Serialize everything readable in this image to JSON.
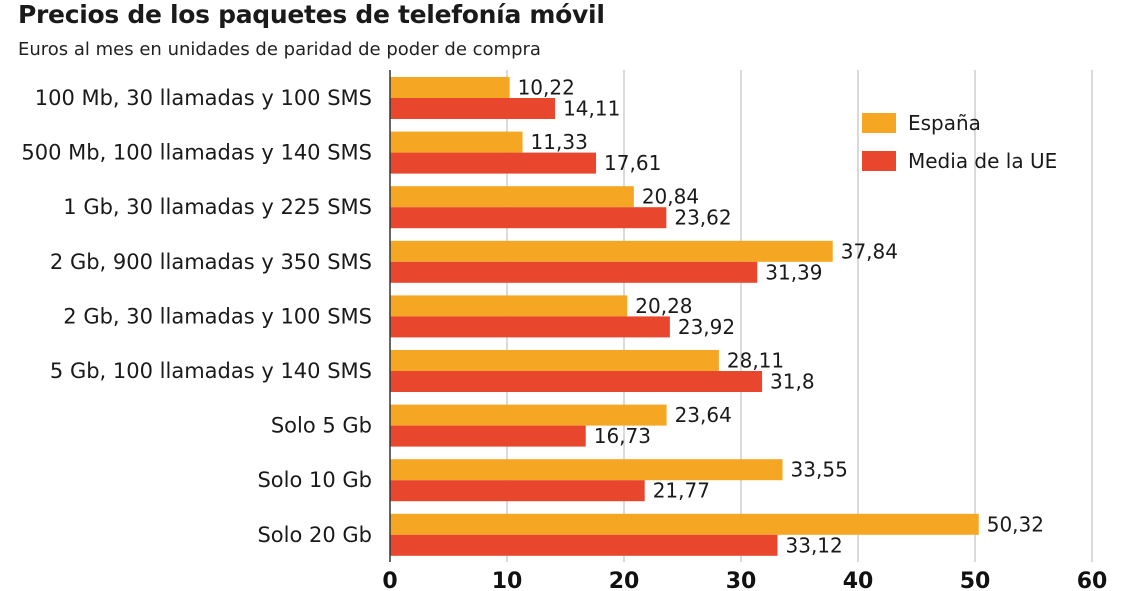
{
  "chart_data": {
    "type": "bar",
    "orientation": "horizontal",
    "title": "Precios de los paquetes de telefonía móvil",
    "subtitle": "Euros al mes en unidades de paridad de poder de compra",
    "categories": [
      "100 Mb, 30 llamadas y 100 SMS",
      "500 Mb, 100 llamadas y 140 SMS",
      "1 Gb, 30 llamadas y 225 SMS",
      "2 Gb, 900 llamadas y 350 SMS",
      "2 Gb, 30 llamadas y 100 SMS",
      "5 Gb, 100 llamadas y 140 SMS",
      "Solo 5 Gb",
      "Solo 10 Gb",
      "Solo 20 Gb"
    ],
    "series": [
      {
        "name": "España",
        "color": "#F5A623",
        "values": [
          10.22,
          11.33,
          20.84,
          37.84,
          20.28,
          28.11,
          23.64,
          33.55,
          50.32
        ],
        "labels": [
          "10,22",
          "11,33",
          "20,84",
          "37,84",
          "20,28",
          "28,11",
          "23,64",
          "33,55",
          "50,32"
        ]
      },
      {
        "name": "Media de la UE",
        "color": "#E8472E",
        "values": [
          14.11,
          17.61,
          23.62,
          31.39,
          23.92,
          31.8,
          16.73,
          21.77,
          33.12
        ],
        "labels": [
          "14,11",
          "17,61",
          "23,62",
          "31,39",
          "23,92",
          "31,8",
          "16,73",
          "21,77",
          "33,12"
        ]
      }
    ],
    "xlim": [
      0,
      60
    ],
    "xticks": [
      0,
      10,
      20,
      30,
      40,
      50,
      60
    ],
    "grid": true,
    "legend_position": "top-right",
    "xlabel": "",
    "ylabel": ""
  }
}
